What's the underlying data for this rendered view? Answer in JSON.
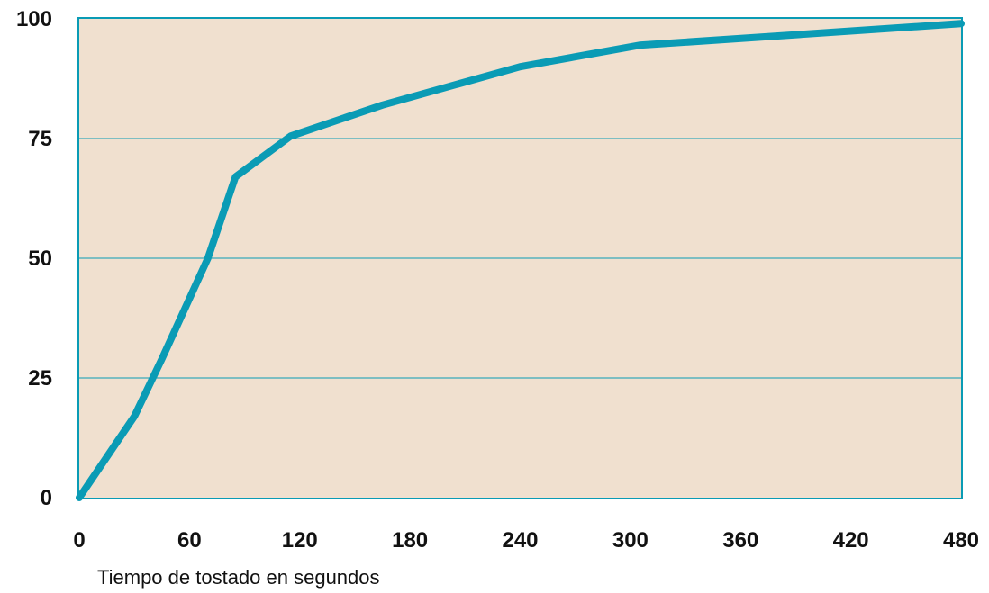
{
  "chart_data": {
    "type": "line",
    "title": "",
    "xlabel": "Tiempo de tostado en segundos",
    "ylabel": "",
    "xlim": [
      0,
      480
    ],
    "ylim": [
      0,
      100
    ],
    "x_ticks": [
      0,
      60,
      120,
      180,
      240,
      300,
      360,
      420,
      480
    ],
    "y_ticks": [
      0,
      25,
      50,
      75,
      100
    ],
    "grid": "horizontal",
    "background_color": "#f0e0cf",
    "line_color": "#0a9bb5",
    "grid_color": "#0a9bb5",
    "series": [
      {
        "x": [
          0,
          30,
          45,
          70,
          85,
          115,
          165,
          240,
          305,
          480
        ],
        "values": [
          0,
          17,
          29,
          50,
          67,
          75.5,
          82,
          90,
          94.5,
          99
        ]
      }
    ]
  }
}
